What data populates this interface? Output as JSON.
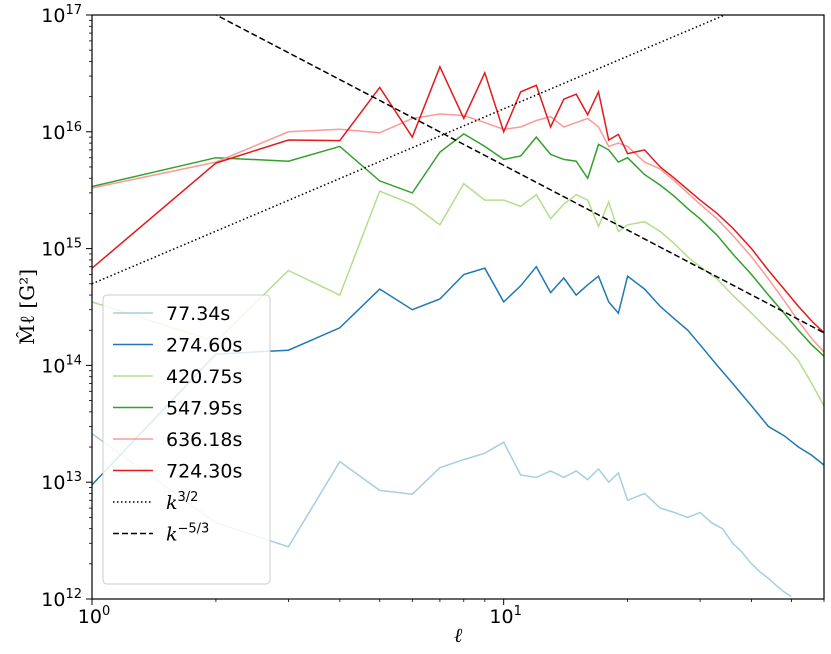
{
  "chart_data": {
    "type": "line",
    "x_scale": "log",
    "y_scale": "log",
    "xlim": [
      1,
      60
    ],
    "ylim": [
      1000000000000.0,
      1e+17
    ],
    "x_ticks": [
      {
        "value": 1,
        "mantissa": "10",
        "exp": "0"
      },
      {
        "value": 10,
        "mantissa": "10",
        "exp": "1"
      }
    ],
    "y_ticks": [
      {
        "value": 1000000000000.0,
        "mantissa": "10",
        "exp": "12"
      },
      {
        "value": 10000000000000.0,
        "mantissa": "10",
        "exp": "13"
      },
      {
        "value": 100000000000000.0,
        "mantissa": "10",
        "exp": "14"
      },
      {
        "value": 1000000000000000.0,
        "mantissa": "10",
        "exp": "15"
      },
      {
        "value": 1e+16,
        "mantissa": "10",
        "exp": "16"
      },
      {
        "value": 1e+17,
        "mantissa": "10",
        "exp": "17"
      }
    ],
    "xlabel": "ℓ",
    "ylabel": "M̂ℓ [G²]",
    "grid": false,
    "legend_position": "lower-left",
    "series": [
      {
        "name": "77.34s",
        "color": "#a6cee3",
        "style": "solid",
        "x": [
          1,
          2,
          3,
          4,
          5,
          6,
          7,
          8,
          9,
          10,
          11,
          12,
          13,
          14,
          15,
          16,
          17,
          18,
          19,
          20,
          22,
          24,
          26,
          28,
          30,
          32,
          34,
          36,
          38,
          40,
          42,
          44,
          46,
          48,
          50
        ],
        "y": [
          26000000000000.0,
          4500000000000.0,
          2800000000000.0,
          15000000000000.0,
          8500000000000.0,
          7900000000000.0,
          13300000000000.0,
          15600000000000.0,
          17700000000000.0,
          22000000000000.0,
          11500000000000.0,
          11000000000000.0,
          12500000000000.0,
          11000000000000.0,
          12500000000000.0,
          10500000000000.0,
          13000000000000.0,
          10000000000000.0,
          12000000000000.0,
          7000000000000.0,
          8000000000000.0,
          6000000000000.0,
          5500000000000.0,
          5000000000000.0,
          5500000000000.0,
          4500000000000.0,
          4000000000000.0,
          3000000000000.0,
          2500000000000.0,
          2000000000000.0,
          1700000000000.0,
          1500000000000.0,
          1300000000000.0,
          1150000000000.0,
          1050000000000.0
        ]
      },
      {
        "name": "274.60s",
        "color": "#1f78b4",
        "style": "solid",
        "x": [
          1,
          2,
          3,
          4,
          5,
          6,
          7,
          8,
          9,
          10,
          11,
          12,
          13,
          14,
          15,
          16,
          17,
          18,
          19,
          20,
          22,
          24,
          26,
          28,
          30,
          33,
          36,
          40,
          44,
          48,
          52,
          56,
          60
        ],
        "y": [
          9500000000000.0,
          125000000000000.0,
          135000000000000.0,
          210000000000000.0,
          450000000000000.0,
          300000000000000.0,
          370000000000000.0,
          600000000000000.0,
          680000000000000.0,
          350000000000000.0,
          480000000000000.0,
          700000000000000.0,
          420000000000000.0,
          560000000000000.0,
          400000000000000.0,
          490000000000000.0,
          580000000000000.0,
          350000000000000.0,
          280000000000000.0,
          580000000000000.0,
          450000000000000.0,
          320000000000000.0,
          250000000000000.0,
          200000000000000.0,
          150000000000000.0,
          100000000000000.0,
          70000000000000.0,
          45000000000000.0,
          30000000000000.0,
          25000000000000.0,
          20000000000000.0,
          17000000000000.0,
          14000000000000.0
        ]
      },
      {
        "name": "420.75s",
        "color": "#b2df8a",
        "style": "solid",
        "x": [
          1,
          2,
          3,
          4,
          5,
          6,
          7,
          8,
          9,
          10,
          11,
          12,
          13,
          14,
          15,
          16,
          17,
          18,
          19,
          20,
          22,
          24,
          26,
          28,
          30,
          33,
          36,
          40,
          44,
          48,
          52,
          56,
          60
        ],
        "y": [
          350000000000000.0,
          160000000000000.0,
          650000000000000.0,
          400000000000000.0,
          3100000000000000.0,
          2400000000000000.0,
          1600000000000000.0,
          3600000000000000.0,
          2600000000000000.0,
          2600000000000000.0,
          2300000000000000.0,
          2900000000000000.0,
          1800000000000000.0,
          2400000000000000.0,
          2900000000000000.0,
          2600000000000000.0,
          1550000000000000.0,
          2500000000000000.0,
          1400000000000000.0,
          1600000000000000.0,
          1700000000000000.0,
          1400000000000000.0,
          1100000000000000.0,
          850000000000000.0,
          700000000000000.0,
          550000000000000.0,
          400000000000000.0,
          280000000000000.0,
          200000000000000.0,
          150000000000000.0,
          110000000000000.0,
          70000000000000.0,
          45000000000000.0
        ]
      },
      {
        "name": "547.95s",
        "color": "#33a02c",
        "style": "solid",
        "x": [
          1,
          2,
          3,
          4,
          5,
          6,
          7,
          8,
          9,
          10,
          11,
          12,
          13,
          14,
          15,
          16,
          17,
          18,
          19,
          20,
          22,
          24,
          26,
          28,
          30,
          33,
          36,
          40,
          44,
          48,
          52,
          56,
          60
        ],
        "y": [
          3400000000000000.0,
          6000000000000000.0,
          5600000000000000.0,
          7500000000000000.0,
          3800000000000000.0,
          3000000000000000.0,
          6700000000000000.0,
          9600000000000000.0,
          7500000000000000.0,
          5800000000000000.0,
          6200000000000000.0,
          9000000000000000.0,
          6400000000000000.0,
          5800000000000000.0,
          5600000000000000.0,
          4000000000000000.0,
          7800000000000000.0,
          7000000000000000.0,
          5500000000000000.0,
          6000000000000000.0,
          4300000000000000.0,
          3500000000000000.0,
          2800000000000000.0,
          2200000000000000.0,
          1800000000000000.0,
          1300000000000000.0,
          900000000000000.0,
          600000000000000.0,
          400000000000000.0,
          280000000000000.0,
          200000000000000.0,
          150000000000000.0,
          120000000000000.0
        ]
      },
      {
        "name": "636.18s",
        "color": "#fb9a99",
        "style": "solid",
        "x": [
          1,
          2,
          3,
          4,
          5,
          6,
          7,
          8,
          9,
          10,
          11,
          12,
          13,
          14,
          15,
          16,
          17,
          18,
          19,
          20,
          22,
          24,
          26,
          28,
          30,
          33,
          36,
          40,
          44,
          48,
          52,
          56,
          60
        ],
        "y": [
          3300000000000000.0,
          5500000000000000.0,
          1e+16,
          1.05e+16,
          9800000000000000.0,
          1.3e+16,
          1.42e+16,
          1.38e+16,
          1.2e+16,
          1.05e+16,
          1.1e+16,
          1.25e+16,
          1.35e+16,
          1.1e+16,
          1.2e+16,
          1.3e+16,
          1.1e+16,
          7500000000000000.0,
          8000000000000000.0,
          7500000000000000.0,
          5500000000000000.0,
          4800000000000000.0,
          3800000000000000.0,
          3000000000000000.0,
          2400000000000000.0,
          1800000000000000.0,
          1300000000000000.0,
          850000000000000.0,
          550000000000000.0,
          360000000000000.0,
          240000000000000.0,
          170000000000000.0,
          130000000000000.0
        ]
      },
      {
        "name": "724.30s",
        "color": "#e31a1c",
        "style": "solid",
        "x": [
          1,
          2,
          3,
          4,
          5,
          6,
          7,
          8,
          9,
          10,
          11,
          12,
          13,
          14,
          15,
          16,
          17,
          18,
          19,
          20,
          22,
          24,
          26,
          28,
          30,
          33,
          36,
          40,
          44,
          48,
          52,
          56,
          60
        ],
        "y": [
          680000000000000.0,
          5400000000000000.0,
          8500000000000000.0,
          8400000000000000.0,
          2.4e+16,
          9000000000000000.0,
          3.6e+16,
          1.3e+16,
          3.2e+16,
          1e+16,
          2.2e+16,
          2.5e+16,
          1.1e+16,
          1.9e+16,
          2.1e+16,
          1.4e+16,
          2.2e+16,
          8500000000000000.0,
          9500000000000000.0,
          6500000000000000.0,
          7000000000000000.0,
          5000000000000000.0,
          4000000000000000.0,
          3200000000000000.0,
          2600000000000000.0,
          2000000000000000.0,
          1500000000000000.0,
          1000000000000000.0,
          650000000000000.0,
          450000000000000.0,
          320000000000000.0,
          240000000000000.0,
          190000000000000.0
        ]
      },
      {
        "name": "k^{3/2}",
        "label_base": "k",
        "label_exp": "3/2",
        "color": "#000000",
        "style": "dotted",
        "x": [
          1,
          60
        ],
        "y": [
          500000000000000.0,
          2.3e+17
        ]
      },
      {
        "name": "k^{-5/3}",
        "label_base": "k",
        "label_exp": "−5/3",
        "color": "#000000",
        "style": "dashed",
        "x": [
          1,
          60
        ],
        "y": [
          3.6e+17,
          190000000000000.0
        ]
      }
    ]
  }
}
